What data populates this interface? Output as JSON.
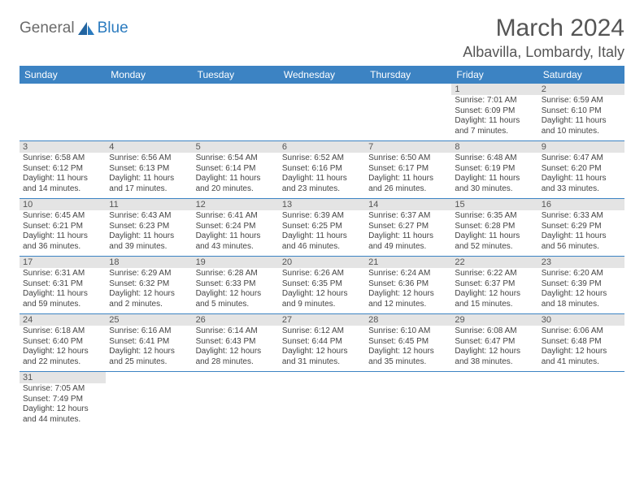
{
  "logo": {
    "word1": "General",
    "word2": "Blue"
  },
  "title": "March 2024",
  "location": "Albavilla, Lombardy, Italy",
  "colors": {
    "header_bg": "#3c83c3",
    "daynum_bg": "#e4e4e4",
    "text": "#555555",
    "info_text": "#444444",
    "logo_blue": "#2b7bbf",
    "logo_gray": "#6b6b6b"
  },
  "day_names": [
    "Sunday",
    "Monday",
    "Tuesday",
    "Wednesday",
    "Thursday",
    "Friday",
    "Saturday"
  ],
  "weeks": [
    [
      {
        "day": "",
        "sunrise": "",
        "sunset": "",
        "daylight": ""
      },
      {
        "day": "",
        "sunrise": "",
        "sunset": "",
        "daylight": ""
      },
      {
        "day": "",
        "sunrise": "",
        "sunset": "",
        "daylight": ""
      },
      {
        "day": "",
        "sunrise": "",
        "sunset": "",
        "daylight": ""
      },
      {
        "day": "",
        "sunrise": "",
        "sunset": "",
        "daylight": ""
      },
      {
        "day": "1",
        "sunrise": "Sunrise: 7:01 AM",
        "sunset": "Sunset: 6:09 PM",
        "daylight": "Daylight: 11 hours and 7 minutes."
      },
      {
        "day": "2",
        "sunrise": "Sunrise: 6:59 AM",
        "sunset": "Sunset: 6:10 PM",
        "daylight": "Daylight: 11 hours and 10 minutes."
      }
    ],
    [
      {
        "day": "3",
        "sunrise": "Sunrise: 6:58 AM",
        "sunset": "Sunset: 6:12 PM",
        "daylight": "Daylight: 11 hours and 14 minutes."
      },
      {
        "day": "4",
        "sunrise": "Sunrise: 6:56 AM",
        "sunset": "Sunset: 6:13 PM",
        "daylight": "Daylight: 11 hours and 17 minutes."
      },
      {
        "day": "5",
        "sunrise": "Sunrise: 6:54 AM",
        "sunset": "Sunset: 6:14 PM",
        "daylight": "Daylight: 11 hours and 20 minutes."
      },
      {
        "day": "6",
        "sunrise": "Sunrise: 6:52 AM",
        "sunset": "Sunset: 6:16 PM",
        "daylight": "Daylight: 11 hours and 23 minutes."
      },
      {
        "day": "7",
        "sunrise": "Sunrise: 6:50 AM",
        "sunset": "Sunset: 6:17 PM",
        "daylight": "Daylight: 11 hours and 26 minutes."
      },
      {
        "day": "8",
        "sunrise": "Sunrise: 6:48 AM",
        "sunset": "Sunset: 6:19 PM",
        "daylight": "Daylight: 11 hours and 30 minutes."
      },
      {
        "day": "9",
        "sunrise": "Sunrise: 6:47 AM",
        "sunset": "Sunset: 6:20 PM",
        "daylight": "Daylight: 11 hours and 33 minutes."
      }
    ],
    [
      {
        "day": "10",
        "sunrise": "Sunrise: 6:45 AM",
        "sunset": "Sunset: 6:21 PM",
        "daylight": "Daylight: 11 hours and 36 minutes."
      },
      {
        "day": "11",
        "sunrise": "Sunrise: 6:43 AM",
        "sunset": "Sunset: 6:23 PM",
        "daylight": "Daylight: 11 hours and 39 minutes."
      },
      {
        "day": "12",
        "sunrise": "Sunrise: 6:41 AM",
        "sunset": "Sunset: 6:24 PM",
        "daylight": "Daylight: 11 hours and 43 minutes."
      },
      {
        "day": "13",
        "sunrise": "Sunrise: 6:39 AM",
        "sunset": "Sunset: 6:25 PM",
        "daylight": "Daylight: 11 hours and 46 minutes."
      },
      {
        "day": "14",
        "sunrise": "Sunrise: 6:37 AM",
        "sunset": "Sunset: 6:27 PM",
        "daylight": "Daylight: 11 hours and 49 minutes."
      },
      {
        "day": "15",
        "sunrise": "Sunrise: 6:35 AM",
        "sunset": "Sunset: 6:28 PM",
        "daylight": "Daylight: 11 hours and 52 minutes."
      },
      {
        "day": "16",
        "sunrise": "Sunrise: 6:33 AM",
        "sunset": "Sunset: 6:29 PM",
        "daylight": "Daylight: 11 hours and 56 minutes."
      }
    ],
    [
      {
        "day": "17",
        "sunrise": "Sunrise: 6:31 AM",
        "sunset": "Sunset: 6:31 PM",
        "daylight": "Daylight: 11 hours and 59 minutes."
      },
      {
        "day": "18",
        "sunrise": "Sunrise: 6:29 AM",
        "sunset": "Sunset: 6:32 PM",
        "daylight": "Daylight: 12 hours and 2 minutes."
      },
      {
        "day": "19",
        "sunrise": "Sunrise: 6:28 AM",
        "sunset": "Sunset: 6:33 PM",
        "daylight": "Daylight: 12 hours and 5 minutes."
      },
      {
        "day": "20",
        "sunrise": "Sunrise: 6:26 AM",
        "sunset": "Sunset: 6:35 PM",
        "daylight": "Daylight: 12 hours and 9 minutes."
      },
      {
        "day": "21",
        "sunrise": "Sunrise: 6:24 AM",
        "sunset": "Sunset: 6:36 PM",
        "daylight": "Daylight: 12 hours and 12 minutes."
      },
      {
        "day": "22",
        "sunrise": "Sunrise: 6:22 AM",
        "sunset": "Sunset: 6:37 PM",
        "daylight": "Daylight: 12 hours and 15 minutes."
      },
      {
        "day": "23",
        "sunrise": "Sunrise: 6:20 AM",
        "sunset": "Sunset: 6:39 PM",
        "daylight": "Daylight: 12 hours and 18 minutes."
      }
    ],
    [
      {
        "day": "24",
        "sunrise": "Sunrise: 6:18 AM",
        "sunset": "Sunset: 6:40 PM",
        "daylight": "Daylight: 12 hours and 22 minutes."
      },
      {
        "day": "25",
        "sunrise": "Sunrise: 6:16 AM",
        "sunset": "Sunset: 6:41 PM",
        "daylight": "Daylight: 12 hours and 25 minutes."
      },
      {
        "day": "26",
        "sunrise": "Sunrise: 6:14 AM",
        "sunset": "Sunset: 6:43 PM",
        "daylight": "Daylight: 12 hours and 28 minutes."
      },
      {
        "day": "27",
        "sunrise": "Sunrise: 6:12 AM",
        "sunset": "Sunset: 6:44 PM",
        "daylight": "Daylight: 12 hours and 31 minutes."
      },
      {
        "day": "28",
        "sunrise": "Sunrise: 6:10 AM",
        "sunset": "Sunset: 6:45 PM",
        "daylight": "Daylight: 12 hours and 35 minutes."
      },
      {
        "day": "29",
        "sunrise": "Sunrise: 6:08 AM",
        "sunset": "Sunset: 6:47 PM",
        "daylight": "Daylight: 12 hours and 38 minutes."
      },
      {
        "day": "30",
        "sunrise": "Sunrise: 6:06 AM",
        "sunset": "Sunset: 6:48 PM",
        "daylight": "Daylight: 12 hours and 41 minutes."
      }
    ],
    [
      {
        "day": "31",
        "sunrise": "Sunrise: 7:05 AM",
        "sunset": "Sunset: 7:49 PM",
        "daylight": "Daylight: 12 hours and 44 minutes."
      },
      {
        "day": "",
        "sunrise": "",
        "sunset": "",
        "daylight": ""
      },
      {
        "day": "",
        "sunrise": "",
        "sunset": "",
        "daylight": ""
      },
      {
        "day": "",
        "sunrise": "",
        "sunset": "",
        "daylight": ""
      },
      {
        "day": "",
        "sunrise": "",
        "sunset": "",
        "daylight": ""
      },
      {
        "day": "",
        "sunrise": "",
        "sunset": "",
        "daylight": ""
      },
      {
        "day": "",
        "sunrise": "",
        "sunset": "",
        "daylight": ""
      }
    ]
  ]
}
